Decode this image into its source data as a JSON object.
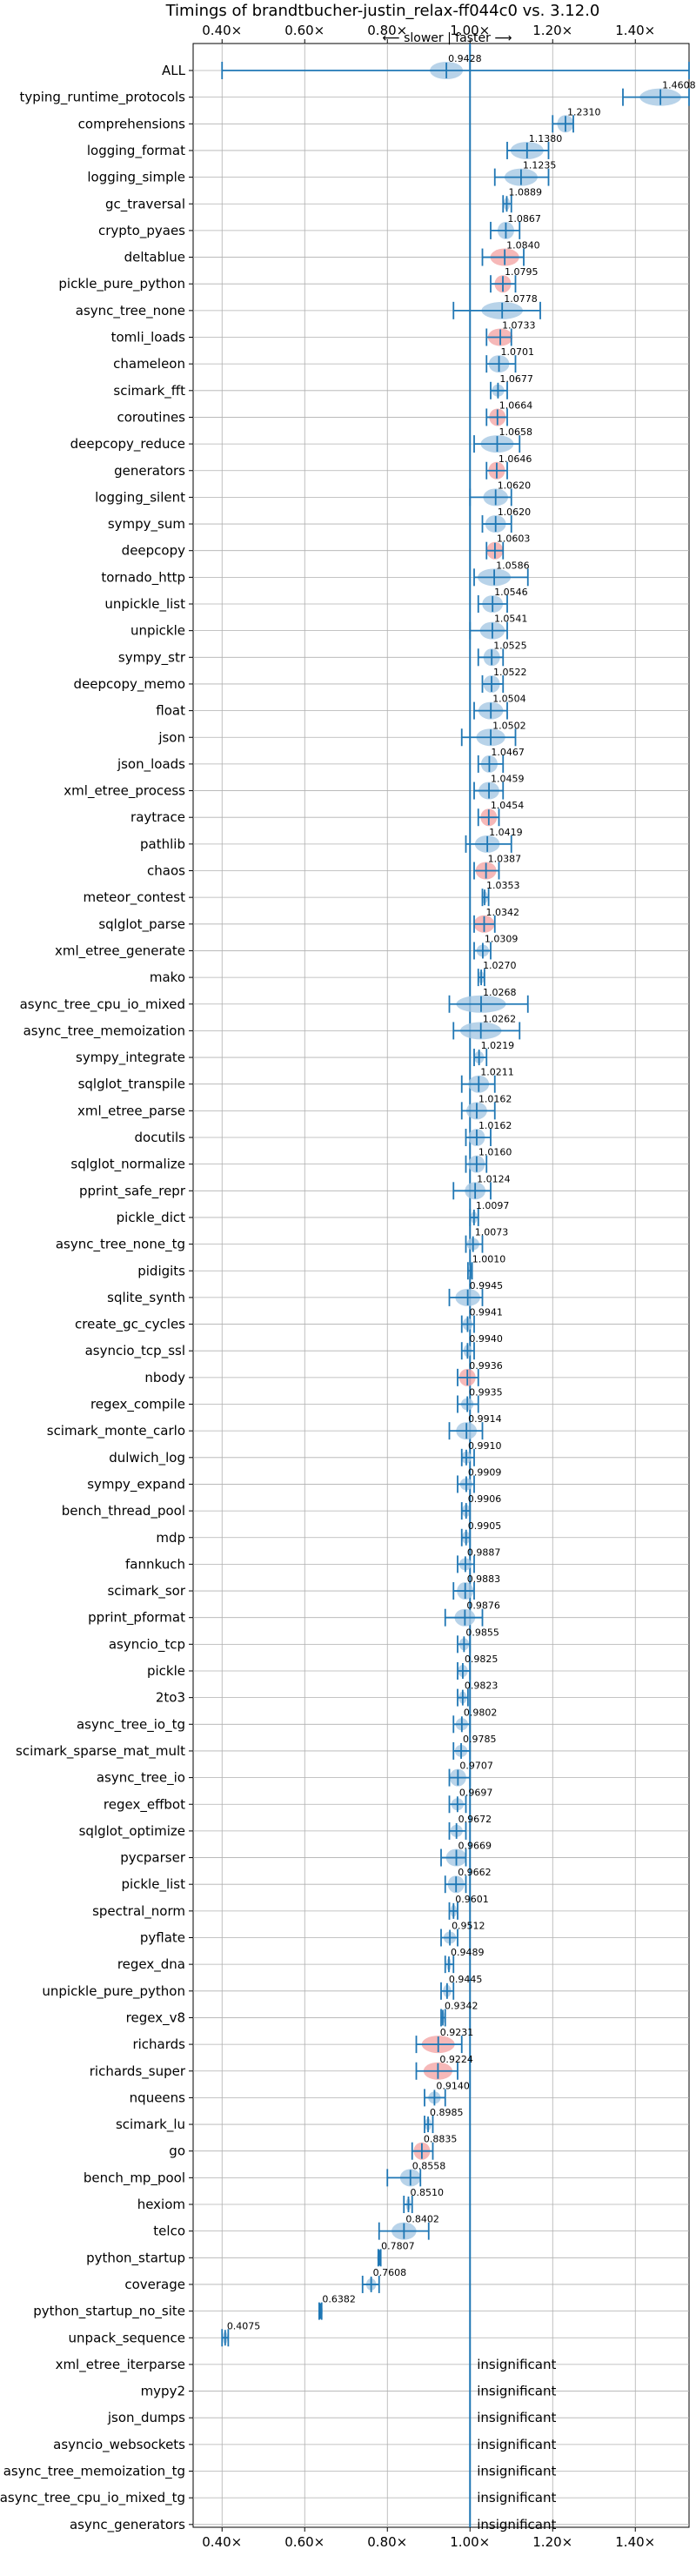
{
  "chart_data": {
    "type": "violin",
    "title": "Timings of brandtbucher-justin_relax-ff044c0 vs. 3.12.0",
    "direction_label": "⟵ slower | faster ⟶",
    "xlim": [
      0.33,
      1.53
    ],
    "xticks": [
      0.4,
      0.6,
      0.8,
      1.0,
      1.2,
      1.4
    ],
    "xtick_labels": [
      "0.40×",
      "0.60×",
      "0.80×",
      "1.00×",
      "1.20×",
      "1.40×"
    ],
    "reference_line": 1.0,
    "grid": true,
    "colors": {
      "normal": "#1f77b4",
      "fill": "#a6c8e4",
      "highlight": "#f4a6a6"
    },
    "benchmarks": [
      {
        "name": "ALL",
        "value": "0.9428",
        "center": 0.9428,
        "low": 0.4,
        "high": 1.53,
        "spread": 0.04,
        "highlight": false
      },
      {
        "name": "typing_runtime_protocols",
        "value": "1.4608",
        "center": 1.4608,
        "low": 1.37,
        "high": 1.53,
        "spread": 0.05,
        "highlight": false
      },
      {
        "name": "comprehensions",
        "value": "1.2310",
        "center": 1.231,
        "low": 1.2,
        "high": 1.25,
        "spread": 0.02,
        "highlight": false
      },
      {
        "name": "logging_format",
        "value": "1.1380",
        "center": 1.138,
        "low": 1.09,
        "high": 1.19,
        "spread": 0.04,
        "highlight": false
      },
      {
        "name": "logging_simple",
        "value": "1.1235",
        "center": 1.1235,
        "low": 1.06,
        "high": 1.19,
        "spread": 0.04,
        "highlight": false
      },
      {
        "name": "gc_traversal",
        "value": "1.0889",
        "center": 1.0889,
        "low": 1.08,
        "high": 1.1,
        "spread": 0.008,
        "highlight": false
      },
      {
        "name": "crypto_pyaes",
        "value": "1.0867",
        "center": 1.0867,
        "low": 1.05,
        "high": 1.12,
        "spread": 0.02,
        "highlight": false
      },
      {
        "name": "deltablue",
        "value": "1.0840",
        "center": 1.084,
        "low": 1.03,
        "high": 1.13,
        "spread": 0.035,
        "highlight": true
      },
      {
        "name": "pickle_pure_python",
        "value": "1.0795",
        "center": 1.0795,
        "low": 1.05,
        "high": 1.11,
        "spread": 0.02,
        "highlight": true
      },
      {
        "name": "async_tree_none",
        "value": "1.0778",
        "center": 1.0778,
        "low": 0.96,
        "high": 1.17,
        "spread": 0.05,
        "highlight": false
      },
      {
        "name": "tomli_loads",
        "value": "1.0733",
        "center": 1.0733,
        "low": 1.04,
        "high": 1.1,
        "spread": 0.03,
        "highlight": true
      },
      {
        "name": "chameleon",
        "value": "1.0701",
        "center": 1.0701,
        "low": 1.04,
        "high": 1.11,
        "spread": 0.025,
        "highlight": false
      },
      {
        "name": "scimark_fft",
        "value": "1.0677",
        "center": 1.0677,
        "low": 1.05,
        "high": 1.09,
        "spread": 0.015,
        "highlight": false
      },
      {
        "name": "coroutines",
        "value": "1.0664",
        "center": 1.0664,
        "low": 1.04,
        "high": 1.09,
        "spread": 0.02,
        "highlight": true
      },
      {
        "name": "deepcopy_reduce",
        "value": "1.0658",
        "center": 1.0658,
        "low": 1.01,
        "high": 1.12,
        "spread": 0.04,
        "highlight": false
      },
      {
        "name": "generators",
        "value": "1.0646",
        "center": 1.0646,
        "low": 1.04,
        "high": 1.09,
        "spread": 0.02,
        "highlight": true
      },
      {
        "name": "logging_silent",
        "value": "1.0620",
        "center": 1.062,
        "low": 1.0,
        "high": 1.1,
        "spread": 0.03,
        "highlight": false
      },
      {
        "name": "sympy_sum",
        "value": "1.0620",
        "center": 1.062,
        "low": 1.03,
        "high": 1.1,
        "spread": 0.025,
        "highlight": false
      },
      {
        "name": "deepcopy",
        "value": "1.0603",
        "center": 1.0603,
        "low": 1.04,
        "high": 1.08,
        "spread": 0.02,
        "highlight": true
      },
      {
        "name": "tornado_http",
        "value": "1.0586",
        "center": 1.0586,
        "low": 1.01,
        "high": 1.14,
        "spread": 0.04,
        "highlight": false
      },
      {
        "name": "unpickle_list",
        "value": "1.0546",
        "center": 1.0546,
        "low": 1.02,
        "high": 1.09,
        "spread": 0.025,
        "highlight": false
      },
      {
        "name": "unpickle",
        "value": "1.0541",
        "center": 1.0541,
        "low": 1.0,
        "high": 1.09,
        "spread": 0.03,
        "highlight": false
      },
      {
        "name": "sympy_str",
        "value": "1.0525",
        "center": 1.0525,
        "low": 1.02,
        "high": 1.08,
        "spread": 0.02,
        "highlight": false
      },
      {
        "name": "deepcopy_memo",
        "value": "1.0522",
        "center": 1.0522,
        "low": 1.03,
        "high": 1.08,
        "spread": 0.02,
        "highlight": false
      },
      {
        "name": "float",
        "value": "1.0504",
        "center": 1.0504,
        "low": 1.01,
        "high": 1.09,
        "spread": 0.03,
        "highlight": false
      },
      {
        "name": "json",
        "value": "1.0502",
        "center": 1.0502,
        "low": 0.98,
        "high": 1.11,
        "spread": 0.035,
        "highlight": false
      },
      {
        "name": "json_loads",
        "value": "1.0467",
        "center": 1.0467,
        "low": 1.02,
        "high": 1.08,
        "spread": 0.02,
        "highlight": false
      },
      {
        "name": "xml_etree_process",
        "value": "1.0459",
        "center": 1.0459,
        "low": 1.01,
        "high": 1.08,
        "spread": 0.025,
        "highlight": false
      },
      {
        "name": "raytrace",
        "value": "1.0454",
        "center": 1.0454,
        "low": 1.02,
        "high": 1.07,
        "spread": 0.02,
        "highlight": true
      },
      {
        "name": "pathlib",
        "value": "1.0419",
        "center": 1.0419,
        "low": 0.99,
        "high": 1.1,
        "spread": 0.03,
        "highlight": false
      },
      {
        "name": "chaos",
        "value": "1.0387",
        "center": 1.0387,
        "low": 1.01,
        "high": 1.07,
        "spread": 0.025,
        "highlight": true
      },
      {
        "name": "meteor_contest",
        "value": "1.0353",
        "center": 1.0353,
        "low": 1.03,
        "high": 1.045,
        "spread": 0.008,
        "highlight": false
      },
      {
        "name": "sqlglot_parse",
        "value": "1.0342",
        "center": 1.0342,
        "low": 1.01,
        "high": 1.06,
        "spread": 0.025,
        "highlight": true
      },
      {
        "name": "xml_etree_generate",
        "value": "1.0309",
        "center": 1.0309,
        "low": 1.01,
        "high": 1.05,
        "spread": 0.015,
        "highlight": false
      },
      {
        "name": "mako",
        "value": "1.0270",
        "center": 1.027,
        "low": 1.02,
        "high": 1.035,
        "spread": 0.008,
        "highlight": false
      },
      {
        "name": "async_tree_cpu_io_mixed",
        "value": "1.0268",
        "center": 1.0268,
        "low": 0.95,
        "high": 1.14,
        "spread": 0.06,
        "highlight": false
      },
      {
        "name": "async_tree_memoization",
        "value": "1.0262",
        "center": 1.0262,
        "low": 0.96,
        "high": 1.12,
        "spread": 0.05,
        "highlight": false
      },
      {
        "name": "sympy_integrate",
        "value": "1.0219",
        "center": 1.0219,
        "low": 1.01,
        "high": 1.04,
        "spread": 0.012,
        "highlight": false
      },
      {
        "name": "sqlglot_transpile",
        "value": "1.0211",
        "center": 1.0211,
        "low": 0.98,
        "high": 1.06,
        "spread": 0.025,
        "highlight": false
      },
      {
        "name": "xml_etree_parse",
        "value": "1.0162",
        "center": 1.0162,
        "low": 0.98,
        "high": 1.06,
        "spread": 0.025,
        "highlight": false
      },
      {
        "name": "docutils",
        "value": "1.0162",
        "center": 1.0162,
        "low": 0.99,
        "high": 1.05,
        "spread": 0.02,
        "highlight": false
      },
      {
        "name": "sqlglot_normalize",
        "value": "1.0160",
        "center": 1.016,
        "low": 0.99,
        "high": 1.04,
        "spread": 0.02,
        "highlight": false
      },
      {
        "name": "pprint_safe_repr",
        "value": "1.0124",
        "center": 1.0124,
        "low": 0.96,
        "high": 1.05,
        "spread": 0.025,
        "highlight": false
      },
      {
        "name": "pickle_dict",
        "value": "1.0097",
        "center": 1.0097,
        "low": 1.0,
        "high": 1.02,
        "spread": 0.008,
        "highlight": false
      },
      {
        "name": "async_tree_none_tg",
        "value": "1.0073",
        "center": 1.0073,
        "low": 0.99,
        "high": 1.03,
        "spread": 0.015,
        "highlight": false
      },
      {
        "name": "pidigits",
        "value": "1.0010",
        "center": 1.001,
        "low": 0.995,
        "high": 1.005,
        "spread": 0.004,
        "highlight": false
      },
      {
        "name": "sqlite_synth",
        "value": "0.9945",
        "center": 0.9945,
        "low": 0.95,
        "high": 1.03,
        "spread": 0.03,
        "highlight": false
      },
      {
        "name": "create_gc_cycles",
        "value": "0.9941",
        "center": 0.9941,
        "low": 0.98,
        "high": 1.01,
        "spread": 0.012,
        "highlight": false
      },
      {
        "name": "asyncio_tcp_ssl",
        "value": "0.9940",
        "center": 0.994,
        "low": 0.98,
        "high": 1.01,
        "spread": 0.01,
        "highlight": false
      },
      {
        "name": "nbody",
        "value": "0.9936",
        "center": 0.9936,
        "low": 0.97,
        "high": 1.02,
        "spread": 0.02,
        "highlight": true
      },
      {
        "name": "regex_compile",
        "value": "0.9935",
        "center": 0.9935,
        "low": 0.97,
        "high": 1.02,
        "spread": 0.015,
        "highlight": false
      },
      {
        "name": "scimark_monte_carlo",
        "value": "0.9914",
        "center": 0.9914,
        "low": 0.95,
        "high": 1.03,
        "spread": 0.025,
        "highlight": false
      },
      {
        "name": "dulwich_log",
        "value": "0.9910",
        "center": 0.991,
        "low": 0.98,
        "high": 1.01,
        "spread": 0.012,
        "highlight": false
      },
      {
        "name": "sympy_expand",
        "value": "0.9909",
        "center": 0.9909,
        "low": 0.97,
        "high": 1.01,
        "spread": 0.015,
        "highlight": false
      },
      {
        "name": "bench_thread_pool",
        "value": "0.9906",
        "center": 0.9906,
        "low": 0.98,
        "high": 1.0,
        "spread": 0.01,
        "highlight": false
      },
      {
        "name": "mdp",
        "value": "0.9905",
        "center": 0.9905,
        "low": 0.98,
        "high": 1.0,
        "spread": 0.01,
        "highlight": false
      },
      {
        "name": "fannkuch",
        "value": "0.9887",
        "center": 0.9887,
        "low": 0.97,
        "high": 1.01,
        "spread": 0.015,
        "highlight": false
      },
      {
        "name": "scimark_sor",
        "value": "0.9883",
        "center": 0.9883,
        "low": 0.96,
        "high": 1.01,
        "spread": 0.02,
        "highlight": false
      },
      {
        "name": "pprint_pformat",
        "value": "0.9876",
        "center": 0.9876,
        "low": 0.94,
        "high": 1.03,
        "spread": 0.025,
        "highlight": false
      },
      {
        "name": "asyncio_tcp",
        "value": "0.9855",
        "center": 0.9855,
        "low": 0.97,
        "high": 1.0,
        "spread": 0.012,
        "highlight": false
      },
      {
        "name": "pickle",
        "value": "0.9825",
        "center": 0.9825,
        "low": 0.97,
        "high": 1.0,
        "spread": 0.012,
        "highlight": false
      },
      {
        "name": "2to3",
        "value": "0.9823",
        "center": 0.9823,
        "low": 0.97,
        "high": 0.995,
        "spread": 0.01,
        "highlight": false
      },
      {
        "name": "async_tree_io_tg",
        "value": "0.9802",
        "center": 0.9802,
        "low": 0.96,
        "high": 1.0,
        "spread": 0.015,
        "highlight": false
      },
      {
        "name": "scimark_sparse_mat_mult",
        "value": "0.9785",
        "center": 0.9785,
        "low": 0.96,
        "high": 1.0,
        "spread": 0.015,
        "highlight": false
      },
      {
        "name": "async_tree_io",
        "value": "0.9707",
        "center": 0.9707,
        "low": 0.95,
        "high": 1.0,
        "spread": 0.02,
        "highlight": false
      },
      {
        "name": "regex_effbot",
        "value": "0.9697",
        "center": 0.9697,
        "low": 0.95,
        "high": 0.99,
        "spread": 0.015,
        "highlight": false
      },
      {
        "name": "sqlglot_optimize",
        "value": "0.9672",
        "center": 0.9672,
        "low": 0.95,
        "high": 0.99,
        "spread": 0.015,
        "highlight": false
      },
      {
        "name": "pycparser",
        "value": "0.9669",
        "center": 0.9669,
        "low": 0.93,
        "high": 0.99,
        "spread": 0.025,
        "highlight": false
      },
      {
        "name": "pickle_list",
        "value": "0.9662",
        "center": 0.9662,
        "low": 0.94,
        "high": 0.99,
        "spread": 0.02,
        "highlight": false
      },
      {
        "name": "spectral_norm",
        "value": "0.9601",
        "center": 0.9601,
        "low": 0.95,
        "high": 0.97,
        "spread": 0.008,
        "highlight": false
      },
      {
        "name": "pyflate",
        "value": "0.9512",
        "center": 0.9512,
        "low": 0.93,
        "high": 0.97,
        "spread": 0.015,
        "highlight": false
      },
      {
        "name": "regex_dna",
        "value": "0.9489",
        "center": 0.9489,
        "low": 0.94,
        "high": 0.96,
        "spread": 0.006,
        "highlight": false
      },
      {
        "name": "unpickle_pure_python",
        "value": "0.9445",
        "center": 0.9445,
        "low": 0.93,
        "high": 0.96,
        "spread": 0.01,
        "highlight": false
      },
      {
        "name": "regex_v8",
        "value": "0.9342",
        "center": 0.9342,
        "low": 0.93,
        "high": 0.94,
        "spread": 0.005,
        "highlight": false
      },
      {
        "name": "richards",
        "value": "0.9231",
        "center": 0.9231,
        "low": 0.87,
        "high": 0.98,
        "spread": 0.04,
        "highlight": true
      },
      {
        "name": "richards_super",
        "value": "0.9224",
        "center": 0.9224,
        "low": 0.87,
        "high": 0.97,
        "spread": 0.035,
        "highlight": true
      },
      {
        "name": "nqueens",
        "value": "0.9140",
        "center": 0.914,
        "low": 0.89,
        "high": 0.94,
        "spread": 0.015,
        "highlight": false
      },
      {
        "name": "scimark_lu",
        "value": "0.8985",
        "center": 0.8985,
        "low": 0.89,
        "high": 0.91,
        "spread": 0.008,
        "highlight": false
      },
      {
        "name": "go",
        "value": "0.8835",
        "center": 0.8835,
        "low": 0.86,
        "high": 0.91,
        "spread": 0.02,
        "highlight": true
      },
      {
        "name": "bench_mp_pool",
        "value": "0.8558",
        "center": 0.8558,
        "low": 0.8,
        "high": 0.88,
        "spread": 0.025,
        "highlight": false
      },
      {
        "name": "hexiom",
        "value": "0.8510",
        "center": 0.851,
        "low": 0.84,
        "high": 0.86,
        "spread": 0.006,
        "highlight": false
      },
      {
        "name": "telco",
        "value": "0.8402",
        "center": 0.8402,
        "low": 0.78,
        "high": 0.9,
        "spread": 0.03,
        "highlight": false
      },
      {
        "name": "python_startup",
        "value": "0.7807",
        "center": 0.7807,
        "low": 0.778,
        "high": 0.784,
        "spread": 0.003,
        "highlight": false
      },
      {
        "name": "coverage",
        "value": "0.7608",
        "center": 0.7608,
        "low": 0.74,
        "high": 0.78,
        "spread": 0.012,
        "highlight": false
      },
      {
        "name": "python_startup_no_site",
        "value": "0.6382",
        "center": 0.6382,
        "low": 0.635,
        "high": 0.641,
        "spread": 0.003,
        "highlight": false
      },
      {
        "name": "unpack_sequence",
        "value": "0.4075",
        "center": 0.4075,
        "low": 0.4,
        "high": 0.415,
        "spread": 0.006,
        "highlight": false
      },
      {
        "name": "xml_etree_iterparse",
        "value": "insignificant",
        "insignificant": true
      },
      {
        "name": "mypy2",
        "value": "insignificant",
        "insignificant": true
      },
      {
        "name": "json_dumps",
        "value": "insignificant",
        "insignificant": true
      },
      {
        "name": "asyncio_websockets",
        "value": "insignificant",
        "insignificant": true
      },
      {
        "name": "async_tree_memoization_tg",
        "value": "insignificant",
        "insignificant": true
      },
      {
        "name": "async_tree_cpu_io_mixed_tg",
        "value": "insignificant",
        "insignificant": true
      },
      {
        "name": "async_generators",
        "value": "insignificant",
        "insignificant": true
      }
    ]
  }
}
